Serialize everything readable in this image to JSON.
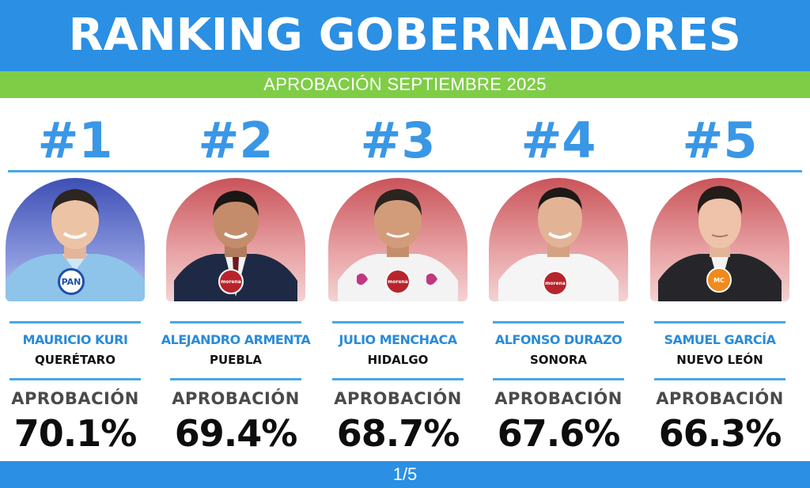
{
  "header": {
    "title": "RANKING GOBERNADORES"
  },
  "subheader": {
    "text": "APROBACIÓN SEPTIEMBRE 2025"
  },
  "footer": {
    "page_indicator": "1/5"
  },
  "colors": {
    "header_blue": "#2b8fe3",
    "subheader_green": "#7fcd47",
    "rank_blue": "#3a97e6",
    "name_blue": "#2a8bd8"
  },
  "governors": [
    {
      "rank": "#1",
      "name": "MAURICIO KURI",
      "state": "QUERÉTARO",
      "approval_label": "APROBACIÓN",
      "approval": "70.1%",
      "party_badge": "PAN",
      "photo_bg": "blue"
    },
    {
      "rank": "#2",
      "name": "ALEJANDRO ARMENTA",
      "state": "PUEBLA",
      "approval_label": "APROBACIÓN",
      "approval": "69.4%",
      "party_badge": "morena",
      "photo_bg": "red"
    },
    {
      "rank": "#3",
      "name": "JULIO MENCHACA",
      "state": "HIDALGO",
      "approval_label": "APROBACIÓN",
      "approval": "68.7%",
      "party_badge": "morena",
      "photo_bg": "red"
    },
    {
      "rank": "#4",
      "name": "ALFONSO DURAZO",
      "state": "SONORA",
      "approval_label": "APROBACIÓN",
      "approval": "67.6%",
      "party_badge": "morena",
      "photo_bg": "red"
    },
    {
      "rank": "#5",
      "name": "SAMUEL GARCÍA",
      "state": "NUEVO LEÓN",
      "approval_label": "APROBACIÓN",
      "approval": "66.3%",
      "party_badge": "MC",
      "photo_bg": "red"
    }
  ]
}
